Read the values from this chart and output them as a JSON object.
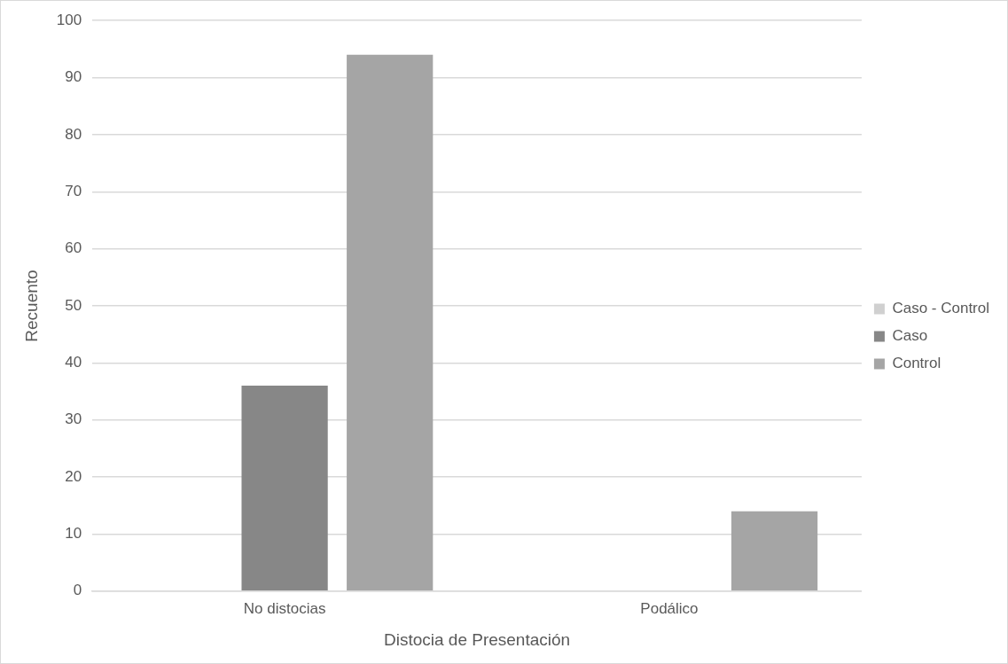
{
  "chart_data": {
    "type": "bar",
    "xlabel": "Distocia de Presentación",
    "ylabel": "Recuento",
    "categories": [
      "No distocias",
      "Podálico"
    ],
    "series": [
      {
        "name": "Caso - Control",
        "color": "#d0d0d0",
        "values": [
          0,
          0
        ]
      },
      {
        "name": "Caso",
        "color": "#878787",
        "values": [
          36,
          0
        ]
      },
      {
        "name": "Control",
        "color": "#a5a5a5",
        "values": [
          94,
          14
        ]
      }
    ],
    "ylim": [
      0,
      100
    ],
    "yticks": [
      0,
      10,
      20,
      30,
      40,
      50,
      60,
      70,
      80,
      90,
      100
    ],
    "grid": "y",
    "legend": "right"
  }
}
